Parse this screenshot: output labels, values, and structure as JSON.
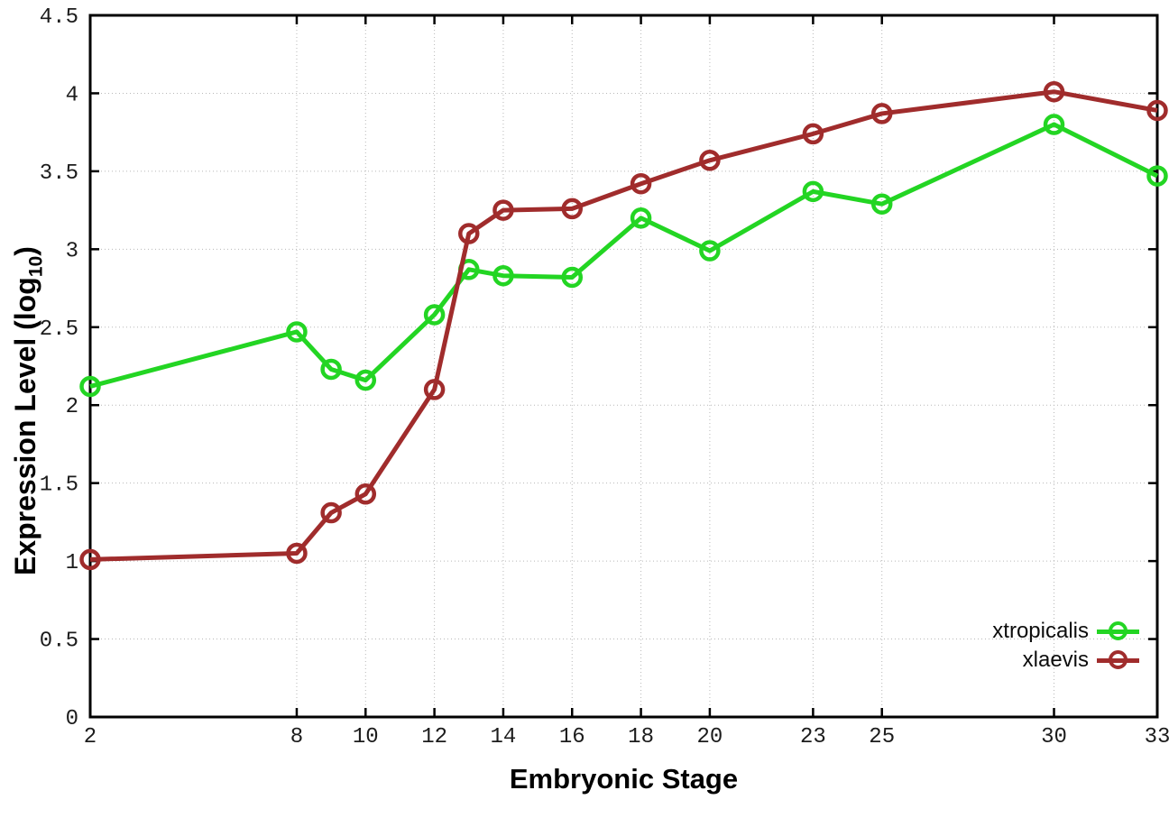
{
  "chart_data": {
    "type": "line",
    "title": "",
    "xlabel": "Embryonic Stage",
    "ylabel": "Expression Level (log10)",
    "x": [
      2,
      8,
      9,
      10,
      12,
      13,
      14,
      16,
      18,
      20,
      23,
      25,
      30,
      33
    ],
    "series": [
      {
        "name": "xtropicalis",
        "color": "#23d523",
        "values": [
          2.12,
          2.47,
          2.23,
          2.16,
          2.58,
          2.87,
          2.83,
          2.82,
          3.2,
          2.99,
          3.37,
          3.29,
          3.8,
          3.47
        ]
      },
      {
        "name": "xlaevis",
        "color": "#a02c2c",
        "values": [
          1.01,
          1.05,
          1.31,
          1.43,
          2.1,
          3.1,
          3.25,
          3.26,
          3.42,
          3.57,
          3.74,
          3.87,
          4.01,
          3.89
        ]
      }
    ],
    "xlim": [
      2,
      33
    ],
    "ylim": [
      0,
      4.5
    ],
    "x_ticks": [
      2,
      8,
      10,
      12,
      14,
      16,
      18,
      20,
      23,
      25,
      30,
      33
    ],
    "y_ticks": [
      0,
      0.5,
      1,
      1.5,
      2,
      2.5,
      3,
      3.5,
      4,
      4.5
    ],
    "grid": true,
    "grid_style": "dotted",
    "legend_position": "bottom-right"
  },
  "axis_titles": {
    "x": "Embryonic Stage",
    "y_main": "Expression Level (log",
    "y_sub": "10",
    "y_end": ")"
  },
  "colors": {
    "background": "#ffffff",
    "axis": "#000000",
    "grid": "#b8b8b8",
    "tick_text": "#1c1c1c",
    "xtropicalis": "#23d523",
    "xlaevis": "#a02c2c"
  }
}
